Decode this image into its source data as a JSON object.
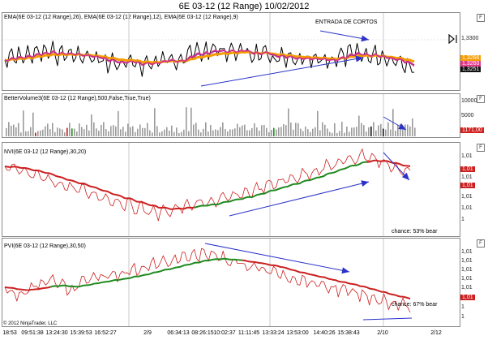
{
  "window_title": "6E 03-12 (12 Range)  10/02/2012",
  "panels": {
    "price": {
      "label": "EMA(6E 03-12 (12 Range),26), EMA(6E 03-12 (12 Range),12), EMA(6E 03-12 (12 Range),9)",
      "annotation": "ENTRADA DE CORTOS",
      "ticks": [
        "1,3300"
      ],
      "tags": [
        "1,3266",
        "1,3260",
        "1,3251"
      ],
      "tag_colors": [
        "#f59b00",
        "#e0368a",
        "#111111"
      ]
    },
    "volume": {
      "label": "BetterVolume3(6E 03-12 (12 Range),500,False,True,True)",
      "ticks": [
        "10000",
        "5000"
      ],
      "tag": "1171,00",
      "tag_color": "#d01f1f"
    },
    "nvi": {
      "label": "NVI(6E 03-12 (12 Range),30,20)",
      "ticks": [
        "1,01",
        "1,01",
        "1,01",
        "1,01",
        "1"
      ],
      "tags": [
        "1,01",
        "1,01"
      ],
      "tag_colors": [
        "#cc2020",
        "#cc2020"
      ],
      "chance": "chance: 53% bear"
    },
    "pvi": {
      "label": "PVI(6E 03-12 (12 Range),30,50)",
      "ticks": [
        "1,01",
        "1,01",
        "1,01",
        "1,01",
        "1,01",
        "1",
        "1"
      ],
      "tags": [
        "1,01"
      ],
      "tag_colors": [
        "#cc2020"
      ],
      "chance": "chance: 67% bear",
      "copyright": "© 2012 NinjaTrader, LLC"
    }
  },
  "x_labels": [
    "18:53",
    "09:51:38",
    "13:24:30",
    "15:39:53",
    "16:52:27",
    "2/9",
    "06:34:13",
    "08:26:15",
    "10:02:37",
    "11:11:45",
    "13:33:24",
    "13:53:00",
    "14:40:26",
    "15:38:43",
    "2/10",
    "2/12"
  ],
  "colors": {
    "price": "#000000",
    "ema26": "#f59b00",
    "ema12": "#a020a0",
    "ema9": "#e0368a",
    "trendline": "#2a32c8",
    "nvi_line": "#cc2020",
    "nvi_ma": "#1e8a1e",
    "volume_bar": "#9a9a9a",
    "volume_up": "#1e8a1e",
    "volume_down": "#c01818",
    "volume_black": "#111111"
  }
}
